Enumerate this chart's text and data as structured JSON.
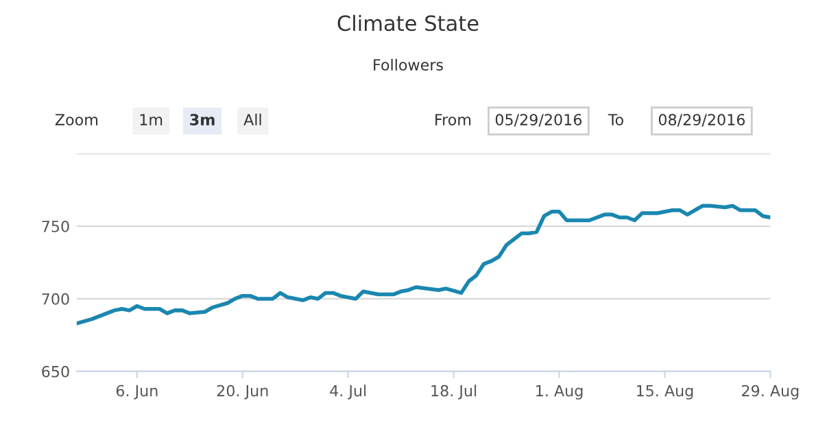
{
  "chart_data": {
    "type": "line",
    "title": "Climate State",
    "subtitle": "Followers",
    "annotations": [
      "Zoom",
      "1m",
      "3m",
      "All",
      "From",
      "05/29/2016",
      "To",
      "08/29/2016"
    ],
    "x": [
      "2016-05-29",
      "2016-05-31",
      "2016-06-01",
      "2016-06-03",
      "2016-06-04",
      "2016-06-05",
      "2016-06-06",
      "2016-06-07",
      "2016-06-09",
      "2016-06-10",
      "2016-06-11",
      "2016-06-12",
      "2016-06-13",
      "2016-06-15",
      "2016-06-16",
      "2016-06-18",
      "2016-06-19",
      "2016-06-20",
      "2016-06-21",
      "2016-06-22",
      "2016-06-24",
      "2016-06-25",
      "2016-06-26",
      "2016-06-28",
      "2016-06-29",
      "2016-06-30",
      "2016-07-01",
      "2016-07-02",
      "2016-07-03",
      "2016-07-05",
      "2016-07-06",
      "2016-07-08",
      "2016-07-10",
      "2016-07-11",
      "2016-07-12",
      "2016-07-13",
      "2016-07-16",
      "2016-07-17",
      "2016-07-19",
      "2016-07-20",
      "2016-07-21",
      "2016-07-22",
      "2016-07-23",
      "2016-07-24",
      "2016-07-25",
      "2016-07-27",
      "2016-07-28",
      "2016-07-29",
      "2016-07-30",
      "2016-07-31",
      "2016-08-01",
      "2016-08-02",
      "2016-08-04",
      "2016-08-05",
      "2016-08-07",
      "2016-08-08",
      "2016-08-09",
      "2016-08-10",
      "2016-08-11",
      "2016-08-12",
      "2016-08-14",
      "2016-08-16",
      "2016-08-17",
      "2016-08-18",
      "2016-08-20",
      "2016-08-21",
      "2016-08-23",
      "2016-08-24",
      "2016-08-25",
      "2016-08-27",
      "2016-08-28",
      "2016-08-29"
    ],
    "series": [
      {
        "color": "#1a87b0",
        "values": [
          683,
          686,
          688,
          692,
          693,
          692,
          695,
          693,
          693,
          690,
          692,
          692,
          690,
          691,
          694,
          697,
          700,
          702,
          702,
          700,
          700,
          704,
          701,
          699,
          701,
          700,
          704,
          704,
          702,
          700,
          705,
          703,
          703,
          705,
          706,
          708,
          706,
          707,
          704,
          712,
          716,
          724,
          726,
          729,
          737,
          745,
          745,
          746,
          757,
          760,
          760,
          754,
          754,
          754,
          758,
          758,
          756,
          756,
          754,
          759,
          759,
          761,
          761,
          758,
          764,
          764,
          763,
          764,
          761,
          761,
          757,
          756
        ]
      }
    ],
    "xlim": [
      "2016-05-29",
      "2016-08-29"
    ],
    "xticks": [
      {
        "value": "2016-06-06",
        "label": "6. Jun"
      },
      {
        "value": "2016-06-20",
        "label": "20. Jun"
      },
      {
        "value": "2016-07-04",
        "label": "4. Jul"
      },
      {
        "value": "2016-07-18",
        "label": "18. Jul"
      },
      {
        "value": "2016-08-01",
        "label": "1. Aug"
      },
      {
        "value": "2016-08-15",
        "label": "15. Aug"
      },
      {
        "value": "2016-08-29",
        "label": "29. Aug"
      }
    ],
    "ylim": [
      650,
      800
    ],
    "yticks": [
      650,
      700,
      750,
      {
        "value": 800,
        "label": null
      }
    ],
    "grid": "y",
    "marker": "none",
    "line_style": "solid"
  }
}
